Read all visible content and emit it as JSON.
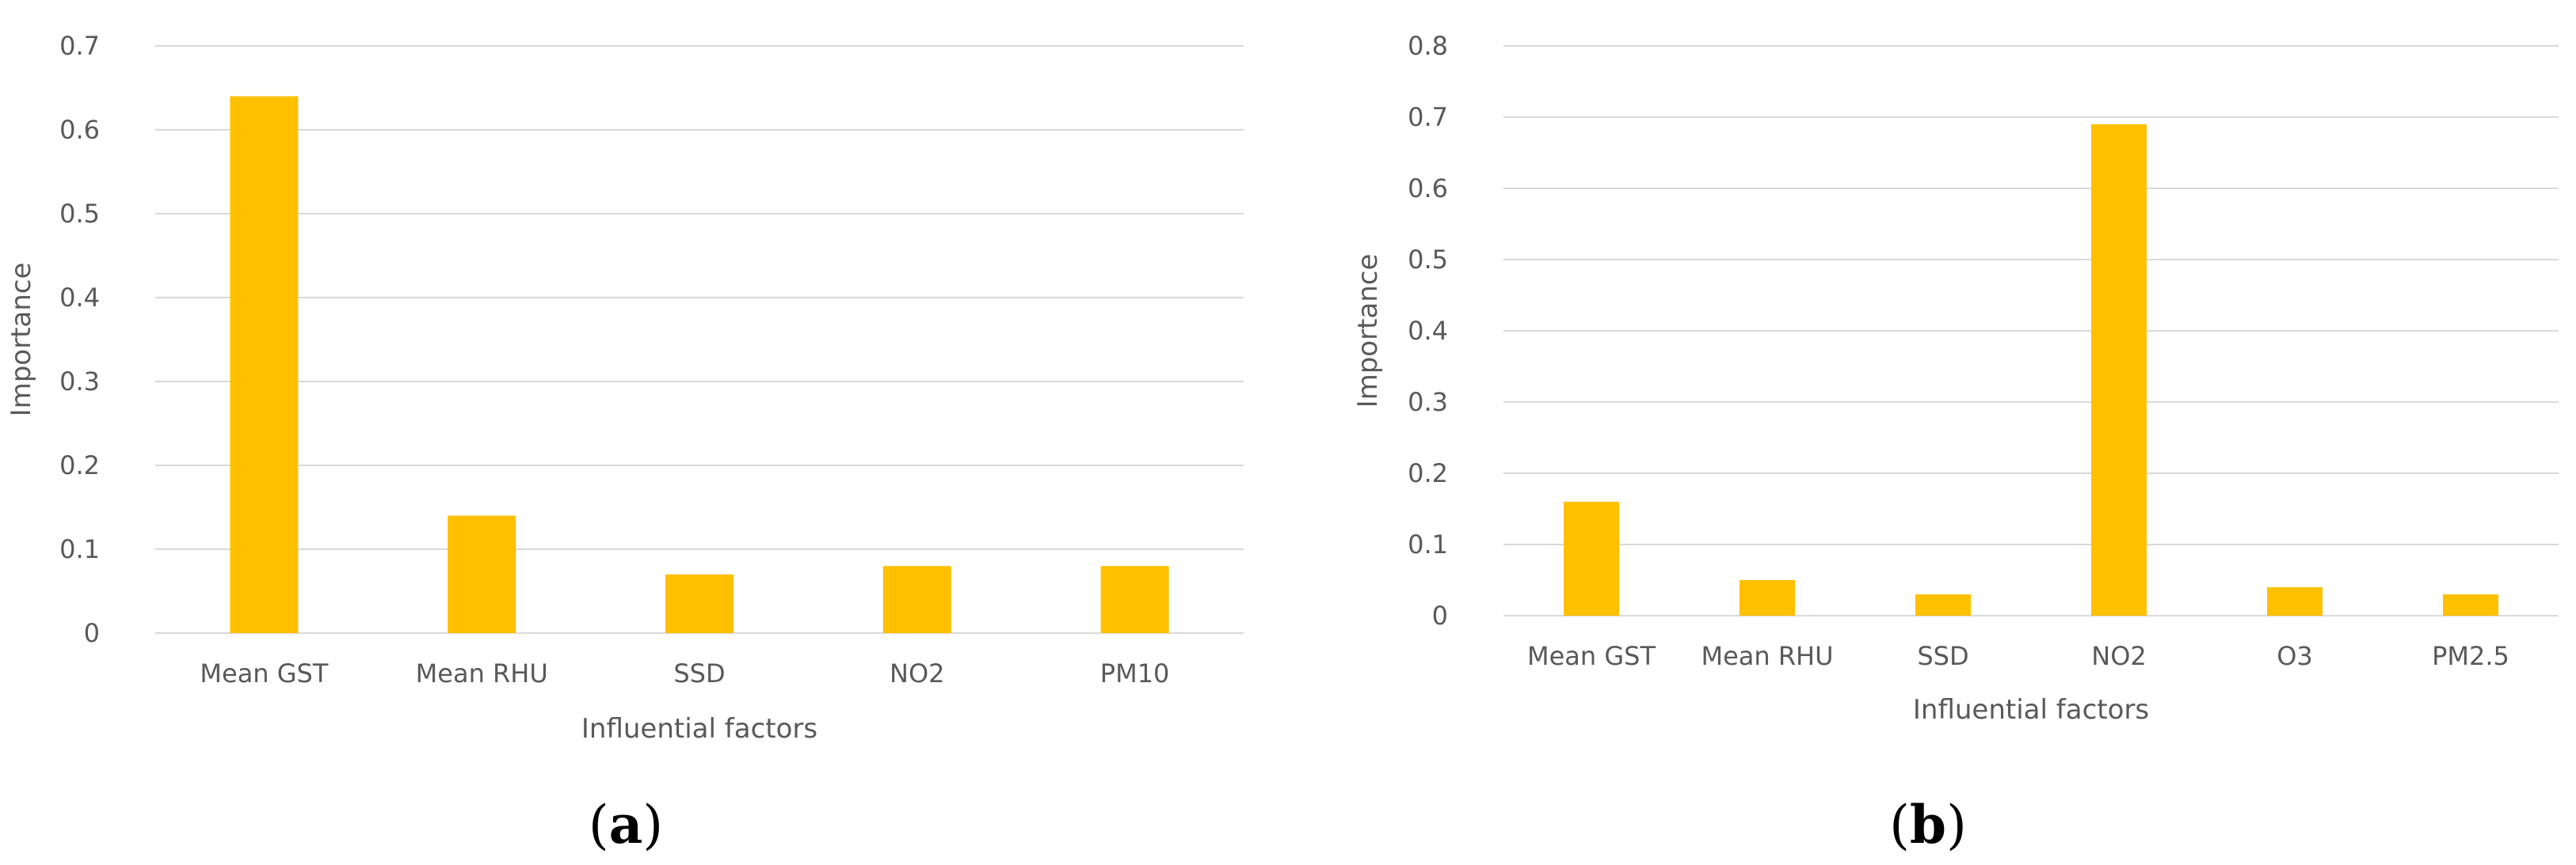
{
  "colors": {
    "bar": "#FFC000",
    "gridline": "#d9d9d9",
    "axis_text": "#595959",
    "axis_line": "#d9d9d9"
  },
  "chart_data": [
    {
      "type": "bar",
      "panel": "(a)",
      "panel_letter": "a",
      "title": "",
      "xlabel": "Influential factors",
      "ylabel": "Importance",
      "categories": [
        "Mean GST",
        "Mean RHU",
        "SSD",
        "NO2",
        "PM10"
      ],
      "values": [
        0.64,
        0.14,
        0.07,
        0.08,
        0.08
      ],
      "ylim": [
        0,
        0.7
      ],
      "yticks": [
        0,
        0.1,
        0.2,
        0.3,
        0.4,
        0.5,
        0.6,
        0.7
      ],
      "ytick_labels": [
        "0",
        "0.1",
        "0.2",
        "0.3",
        "0.4",
        "0.5",
        "0.6",
        "0.7"
      ],
      "grid": true,
      "legend": "none"
    },
    {
      "type": "bar",
      "panel": "(b)",
      "panel_letter": "b",
      "title": "",
      "xlabel": "Influential factors",
      "ylabel": "Importance",
      "categories": [
        "Mean GST",
        "Mean RHU",
        "SSD",
        "NO2",
        "O3",
        "PM2.5"
      ],
      "values": [
        0.16,
        0.05,
        0.03,
        0.69,
        0.04,
        0.03
      ],
      "ylim": [
        0,
        0.8
      ],
      "yticks": [
        0,
        0.1,
        0.2,
        0.3,
        0.4,
        0.5,
        0.6,
        0.7,
        0.8
      ],
      "ytick_labels": [
        "0",
        "0.1",
        "0.2",
        "0.3",
        "0.4",
        "0.5",
        "0.6",
        "0.7",
        "0.8"
      ],
      "grid": true,
      "legend": "none"
    }
  ]
}
